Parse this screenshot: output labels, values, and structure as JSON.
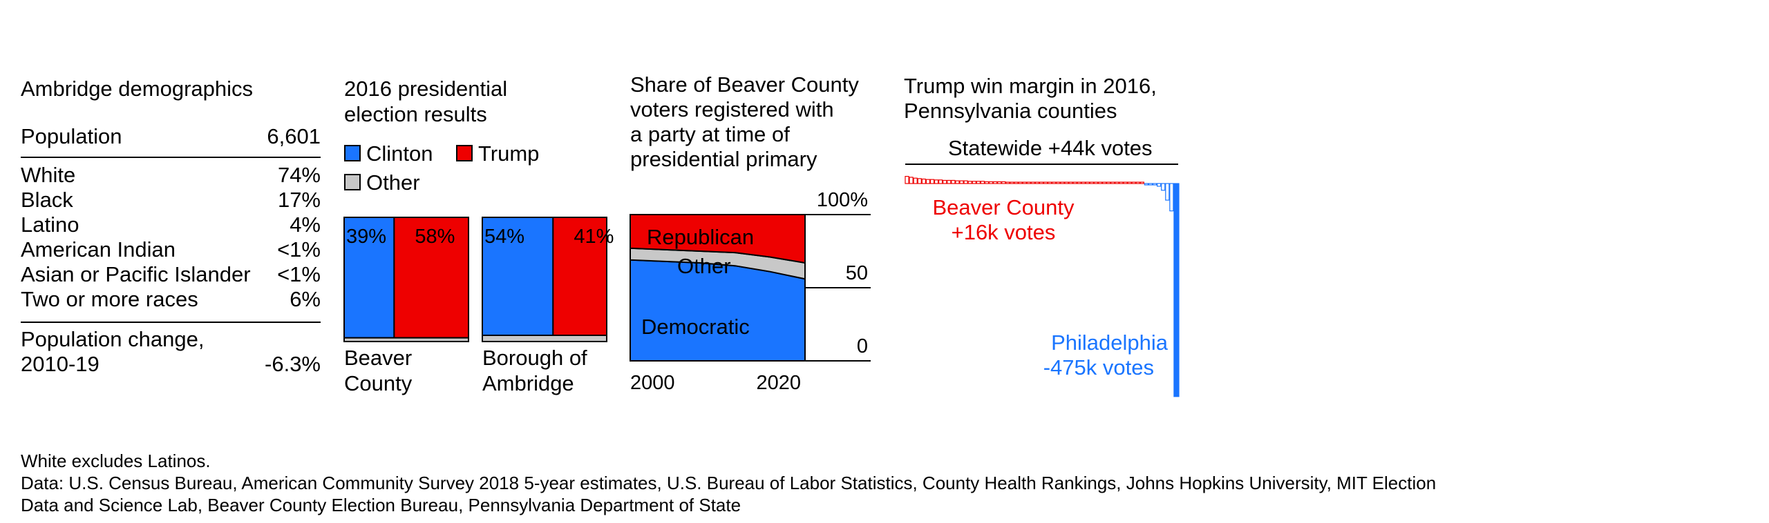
{
  "demographics": {
    "title": "Ambridge demographics",
    "population_label": "Population",
    "population_value": "6,601",
    "rows": [
      {
        "label": "White",
        "value": "74%"
      },
      {
        "label": "Black",
        "value": "17%"
      },
      {
        "label": "Latino",
        "value": "4%"
      },
      {
        "label": "American Indian",
        "value": "<1%"
      },
      {
        "label": "Asian or Pacific Islander",
        "value": "<1%"
      },
      {
        "label": "Two or more races",
        "value": "6%"
      }
    ],
    "change_label_1": "Population change,",
    "change_label_2": "2010-19",
    "change_value": "-6.3%"
  },
  "chart_data": [
    {
      "type": "bar",
      "title": "2016 presidential election results",
      "title_line1": "2016 presidential",
      "title_line2": "election results",
      "legend": [
        {
          "name": "Clinton",
          "color": "#1a75ff"
        },
        {
          "name": "Trump",
          "color": "#ee0000"
        },
        {
          "name": "Other",
          "color": "#c8c8c8"
        }
      ],
      "categories": [
        "Beaver County",
        "Borough of Ambridge"
      ],
      "category_lines": [
        [
          "Beaver",
          "County"
        ],
        [
          "Borough of",
          "Ambridge"
        ]
      ],
      "series": [
        {
          "name": "Clinton",
          "values": [
            39,
            54
          ],
          "labels": [
            "39%",
            "54%"
          ]
        },
        {
          "name": "Trump",
          "values": [
            58,
            41
          ],
          "labels": [
            "58%",
            "41%"
          ]
        },
        {
          "name": "Other",
          "values": [
            3,
            5
          ]
        }
      ]
    },
    {
      "type": "area",
      "title": "Share of Beaver County voters registered with a party at time of presidential primary",
      "title_lines": [
        "Share of Beaver County",
        "voters registered with",
        "a party at time of",
        "presidential primary"
      ],
      "x": [
        2000,
        2004,
        2008,
        2012,
        2016,
        2020
      ],
      "x_ticks": [
        "2000",
        "2020"
      ],
      "y_ticks": [
        "100%",
        "50",
        "0"
      ],
      "ylim": [
        0,
        100
      ],
      "series": [
        {
          "name": "Democratic",
          "values": [
            69,
            68,
            67,
            65,
            61,
            56
          ],
          "color": "#1a75ff"
        },
        {
          "name": "Other",
          "values": [
            8,
            8,
            8,
            9,
            10,
            11
          ],
          "color": "#c8c8c8"
        },
        {
          "name": "Republican",
          "values": [
            23,
            24,
            25,
            26,
            29,
            33
          ],
          "color": "#ee0000"
        }
      ]
    },
    {
      "type": "bar",
      "title": "Trump win margin in 2016, Pennsylvania counties",
      "title_line1": "Trump win margin in 2016,",
      "title_line2": "Pennsylvania counties",
      "statewide_label": "Statewide +44k votes",
      "annotations": [
        {
          "label": "Beaver County",
          "value_label": "+16k votes",
          "color": "#ee0000"
        },
        {
          "label": "Philadelphia",
          "value_label": "-475k votes",
          "color": "#1a75ff"
        }
      ],
      "values_k_votes": [
        16,
        14,
        12,
        11,
        10,
        9,
        9,
        8,
        8,
        7,
        7,
        7,
        6,
        6,
        6,
        5,
        5,
        5,
        5,
        4,
        4,
        4,
        4,
        4,
        3,
        3,
        3,
        3,
        3,
        3,
        3,
        2,
        2,
        2,
        2,
        2,
        2,
        2,
        2,
        2,
        2,
        2,
        2,
        2,
        2,
        2,
        1,
        1,
        1,
        1,
        1,
        1,
        1,
        1,
        1,
        1,
        1,
        -1,
        -2,
        -3,
        -6,
        -15,
        -37,
        -61,
        -475
      ]
    }
  ],
  "footnote": {
    "note": "White excludes Latinos.",
    "source_line1": "Data: U.S. Census Bureau, American Community Survey 2018 5-year estimates, U.S. Bureau of Labor Statistics, County Health Rankings, Johns Hopkins University, MIT Election",
    "source_line2": "Data and Science Lab, Beaver County Election Bureau, Pennsylvania Department of State"
  }
}
